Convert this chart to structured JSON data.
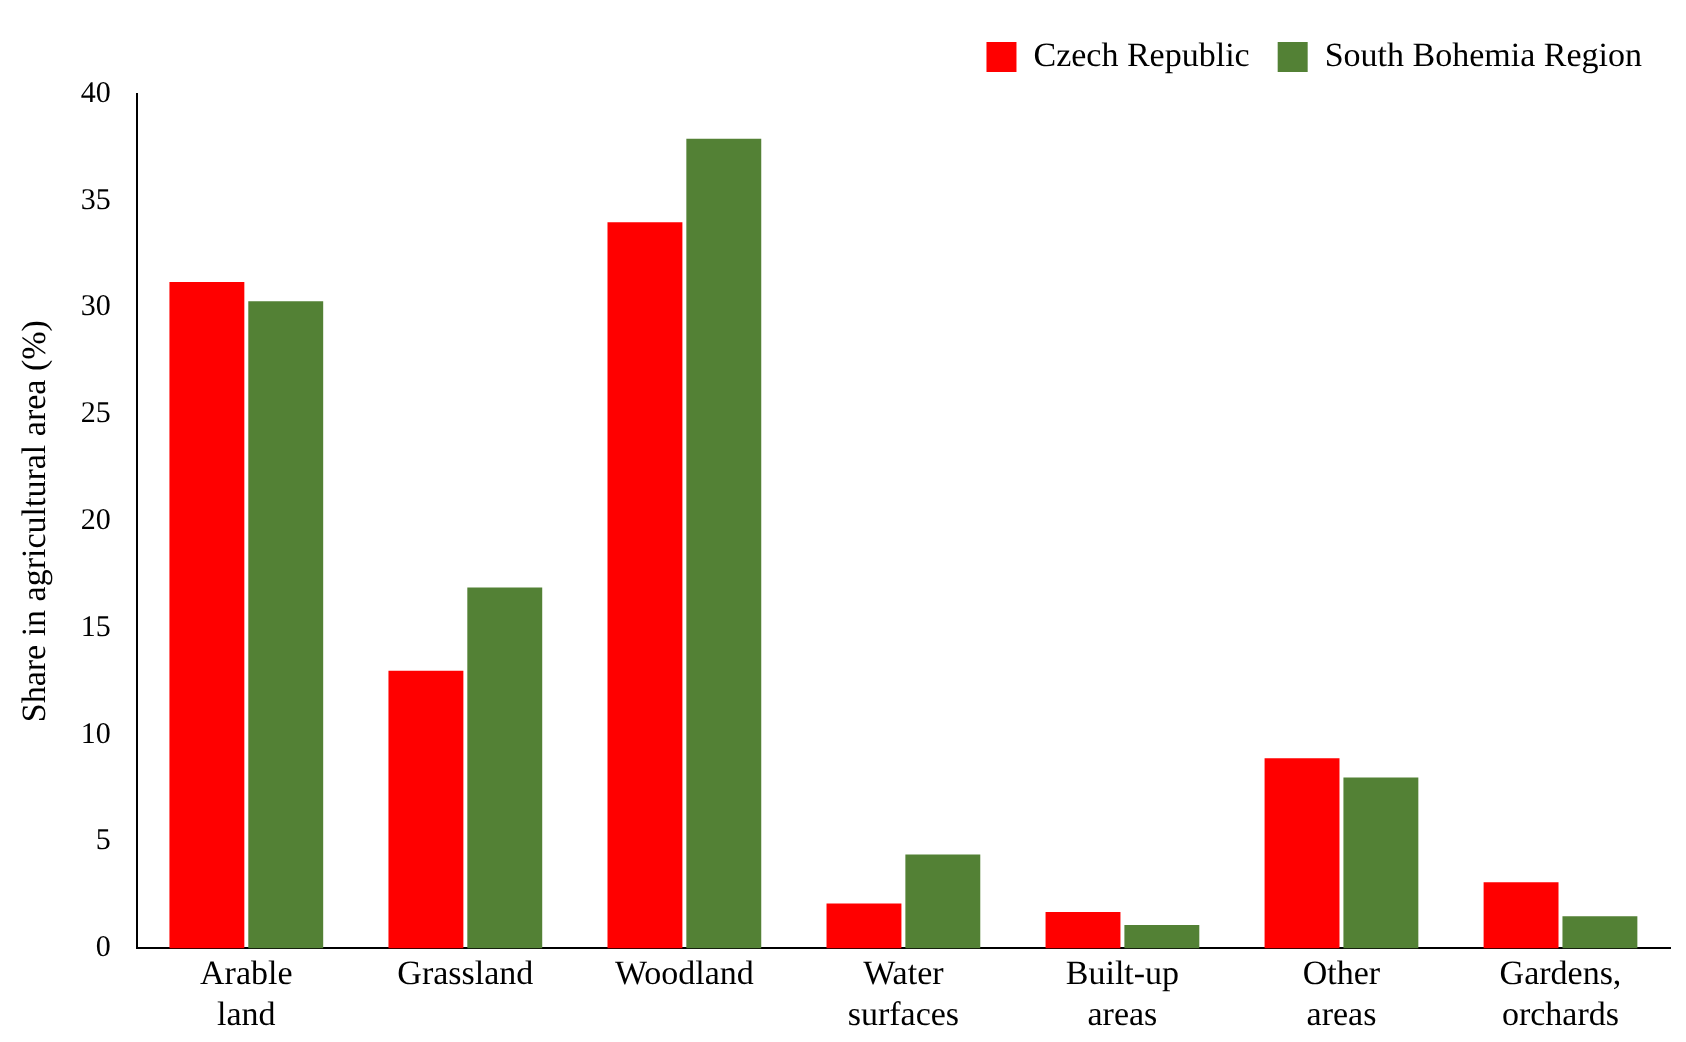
{
  "chart_data": {
    "type": "bar",
    "ylabel": "Share in agricultural area (%)",
    "categories": [
      "Arable land",
      "Grassland",
      "Woodland",
      "Water surfaces",
      "Built-up areas",
      "Other areas",
      "Gardens, orchards"
    ],
    "series": [
      {
        "name": "Czech Republic",
        "color": "#ff0000",
        "values": [
          31.2,
          13.0,
          34.0,
          2.1,
          1.7,
          8.9,
          3.1
        ]
      },
      {
        "name": "South Bohemia Region",
        "color": "#538135",
        "values": [
          30.3,
          16.9,
          37.9,
          4.4,
          1.1,
          8.0,
          1.5
        ]
      }
    ],
    "ylim": [
      0,
      40
    ],
    "yticks": [
      0,
      5,
      10,
      15,
      20,
      25,
      30,
      35,
      40
    ],
    "grid": false,
    "legend": "top right"
  }
}
